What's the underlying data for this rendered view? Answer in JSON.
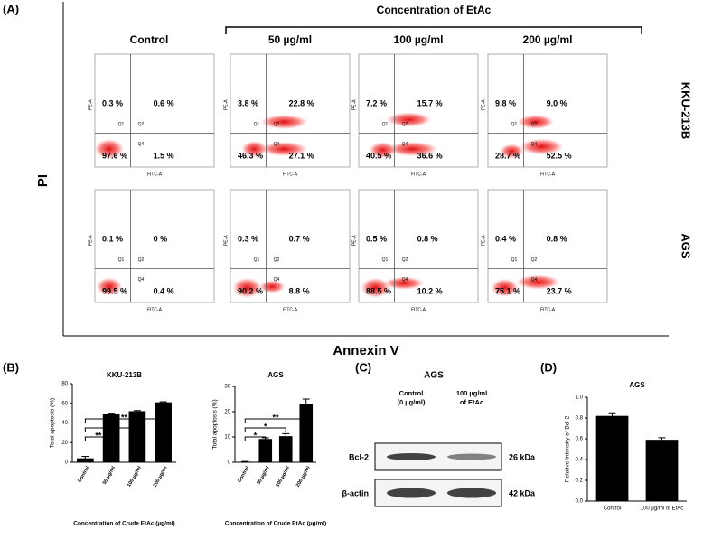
{
  "panel_a": {
    "label": "(A)",
    "title": "Concentration of EtAc",
    "y_label": "PI",
    "x_label": "Annexin V",
    "plot_x_label": "FITC-A",
    "plot_y_label": "PE-A",
    "gate_labels": [
      "Q1",
      "Q2",
      "Q4"
    ],
    "columns": [
      "Control",
      "50 µg/ml",
      "100 µg/ml",
      "200 µg/ml"
    ],
    "rows": [
      {
        "name": "KKU-213B",
        "plots": [
          {
            "q1": "0.3 %",
            "q2": "0.6 %",
            "q3": "97.6 %",
            "q4": "1.5 %"
          },
          {
            "q1": "3.8 %",
            "q2": "22.8 %",
            "q3": "46.3 %",
            "q4": "27.1 %"
          },
          {
            "q1": "7.2 %",
            "q2": "15.7 %",
            "q3": "40.5 %",
            "q4": "36.6 %"
          },
          {
            "q1": "9.8 %",
            "q2": "9.0 %",
            "q3": "28.7 %",
            "q4": "52.5 %"
          }
        ]
      },
      {
        "name": "AGS",
        "plots": [
          {
            "q1": "0.1 %",
            "q2": "0 %",
            "q3": "99.5 %",
            "q4": "0.4 %"
          },
          {
            "q1": "0.3 %",
            "q2": "0.7 %",
            "q3": "90.2 %",
            "q4": "8.8 %"
          },
          {
            "q1": "0.5 %",
            "q2": "0.8 %",
            "q3": "88.5 %",
            "q4": "10.2 %"
          },
          {
            "q1": "0.4 %",
            "q2": "0.8 %",
            "q3": "75.1 %",
            "q4": "23.7 %"
          }
        ]
      }
    ]
  },
  "panel_b": {
    "label": "(B)",
    "charts": [
      {
        "type": "bar",
        "title": "KKU-213B",
        "y_label": "Total apoptosis (%)",
        "x_label": "Concentration of Crude EtAc (µg/ml)",
        "categories": [
          "Control",
          "50 µg/ml",
          "100 µg/ml",
          "200 µg/ml"
        ],
        "values": [
          4,
          49,
          52,
          61
        ],
        "errors": [
          2,
          1,
          0.6,
          0.6
        ],
        "significance": [
          null,
          "**",
          "**",
          "**"
        ],
        "color": "#000000",
        "ylim": [
          0,
          80
        ],
        "yticks": [
          0,
          20,
          40,
          60,
          80
        ]
      },
      {
        "type": "bar",
        "title": "AGS",
        "y_label": "Total apoptosis (%)",
        "x_label": "Concentration of Crude EtAc (µg/ml)",
        "categories": [
          "Control",
          "50 µg/ml",
          "100 µg/ml",
          "200 µg/ml"
        ],
        "values": [
          0.2,
          9.2,
          10.3,
          23
        ],
        "errors": [
          0.1,
          0.5,
          1,
          2
        ],
        "significance": [
          null,
          "*",
          "*",
          "**"
        ],
        "color": "#000000",
        "ylim": [
          0,
          30
        ],
        "yticks": [
          0,
          10,
          20,
          30
        ]
      }
    ]
  },
  "panel_c": {
    "label": "(C)",
    "title": "AGS",
    "lanes": [
      [
        "Control",
        "(0 µg/ml)"
      ],
      [
        "100 µg/ml",
        "of EtAc"
      ]
    ],
    "blots": [
      {
        "name": "Bcl-2",
        "size": "26 kDa"
      },
      {
        "name": "β-actin",
        "size": "42 kDa"
      }
    ]
  },
  "panel_d": {
    "label": "(D)",
    "chart": {
      "type": "bar",
      "title": "AGS",
      "y_label": "Relative Intensity of Bcl-2",
      "categories": [
        "Control",
        "100 µg/ml of EtAc"
      ],
      "values": [
        0.82,
        0.59
      ],
      "errors": [
        0.03,
        0.02
      ],
      "color": "#000000",
      "ylim": [
        0,
        1
      ],
      "yticks": [
        {
          "value": 0,
          "label": "0.0"
        },
        0.2,
        0.4,
        0.6,
        0.8,
        {
          "value": 1,
          "label": "1.0"
        }
      ]
    }
  }
}
